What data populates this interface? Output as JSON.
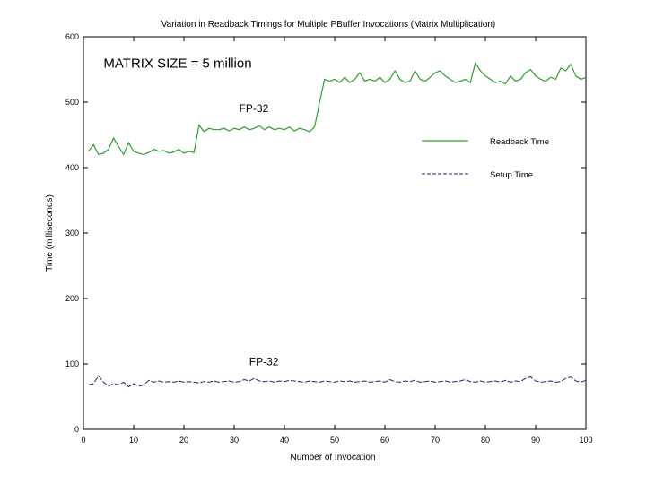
{
  "chart_data": {
    "type": "line",
    "title": "Variation in Readback Timings for Multiple PBuffer Invocations (Matrix Multiplication)",
    "xlabel": "Number of Invocation",
    "ylabel": "Time (milliseconds)",
    "xlim": [
      0,
      100
    ],
    "ylim": [
      0,
      600
    ],
    "x_ticks": [
      0,
      10,
      20,
      30,
      40,
      50,
      60,
      70,
      80,
      90,
      100
    ],
    "y_ticks": [
      0,
      100,
      200,
      300,
      400,
      500,
      600
    ],
    "grid": false,
    "legend_position": "upper-right",
    "annotations": [
      {
        "id": "matrix-size",
        "text": "MATRIX SIZE = 5 million",
        "x": 4,
        "y": 553
      },
      {
        "id": "fp32-upper",
        "text": "FP-32",
        "x": 31,
        "y": 485
      },
      {
        "id": "fp32-lower",
        "text": "FP-32",
        "x": 33,
        "y": 98
      }
    ],
    "series": [
      {
        "name": "Readback Time",
        "color": "#2e9e2e",
        "dash": "solid",
        "x": [
          1,
          2,
          3,
          4,
          5,
          6,
          7,
          8,
          9,
          10,
          11,
          12,
          13,
          14,
          15,
          16,
          17,
          18,
          19,
          20,
          21,
          22,
          23,
          24,
          25,
          26,
          27,
          28,
          29,
          30,
          31,
          32,
          33,
          34,
          35,
          36,
          37,
          38,
          39,
          40,
          41,
          42,
          43,
          44,
          45,
          46,
          47,
          48,
          49,
          50,
          51,
          52,
          53,
          54,
          55,
          56,
          57,
          58,
          59,
          60,
          61,
          62,
          63,
          64,
          65,
          66,
          67,
          68,
          69,
          70,
          71,
          72,
          73,
          74,
          75,
          76,
          77,
          78,
          79,
          80,
          81,
          82,
          83,
          84,
          85,
          86,
          87,
          88,
          89,
          90,
          91,
          92,
          93,
          94,
          95,
          96,
          97,
          98,
          99,
          100
        ],
        "values": [
          425,
          435,
          420,
          422,
          428,
          445,
          432,
          420,
          438,
          425,
          422,
          420,
          423,
          428,
          425,
          426,
          422,
          424,
          428,
          422,
          425,
          423,
          465,
          455,
          460,
          458,
          458,
          460,
          456,
          460,
          458,
          462,
          458,
          460,
          464,
          458,
          462,
          458,
          460,
          458,
          462,
          456,
          460,
          458,
          455,
          462,
          500,
          535,
          532,
          535,
          530,
          538,
          530,
          535,
          545,
          532,
          535,
          532,
          538,
          530,
          535,
          548,
          535,
          530,
          532,
          548,
          535,
          532,
          538,
          545,
          548,
          540,
          535,
          530,
          532,
          535,
          530,
          560,
          548,
          540,
          535,
          530,
          532,
          528,
          540,
          532,
          535,
          545,
          550,
          540,
          535,
          532,
          538,
          535,
          552,
          548,
          558,
          540,
          535,
          538
        ]
      },
      {
        "name": "Setup Time",
        "color": "#1f2a60",
        "dash": "dashed",
        "x": [
          1,
          2,
          3,
          4,
          5,
          6,
          7,
          8,
          9,
          10,
          11,
          12,
          13,
          14,
          15,
          16,
          17,
          18,
          19,
          20,
          21,
          22,
          23,
          24,
          25,
          26,
          27,
          28,
          29,
          30,
          31,
          32,
          33,
          34,
          35,
          36,
          37,
          38,
          39,
          40,
          41,
          42,
          43,
          44,
          45,
          46,
          47,
          48,
          49,
          50,
          51,
          52,
          53,
          54,
          55,
          56,
          57,
          58,
          59,
          60,
          61,
          62,
          63,
          64,
          65,
          66,
          67,
          68,
          69,
          70,
          71,
          72,
          73,
          74,
          75,
          76,
          77,
          78,
          79,
          80,
          81,
          82,
          83,
          84,
          85,
          86,
          87,
          88,
          89,
          90,
          91,
          92,
          93,
          94,
          95,
          96,
          97,
          98,
          99,
          100
        ],
        "values": [
          68,
          70,
          82,
          72,
          66,
          70,
          68,
          72,
          65,
          70,
          66,
          68,
          75,
          72,
          74,
          72,
          73,
          72,
          74,
          72,
          73,
          72,
          71,
          73,
          72,
          74,
          72,
          73,
          74,
          72,
          73,
          76,
          74,
          78,
          74,
          73,
          74,
          72,
          74,
          73,
          75,
          74,
          73,
          72,
          74,
          73,
          72,
          74,
          73,
          72,
          74,
          73,
          74,
          72,
          73,
          74,
          72,
          73,
          74,
          72,
          76,
          73,
          72,
          74,
          73,
          75,
          72,
          73,
          74,
          72,
          73,
          74,
          72,
          73,
          74,
          76,
          73,
          72,
          74,
          72,
          73,
          74,
          72,
          75,
          72,
          74,
          73,
          78,
          80,
          74,
          72,
          73,
          74,
          72,
          73,
          78,
          80,
          74,
          72,
          75
        ]
      }
    ]
  }
}
